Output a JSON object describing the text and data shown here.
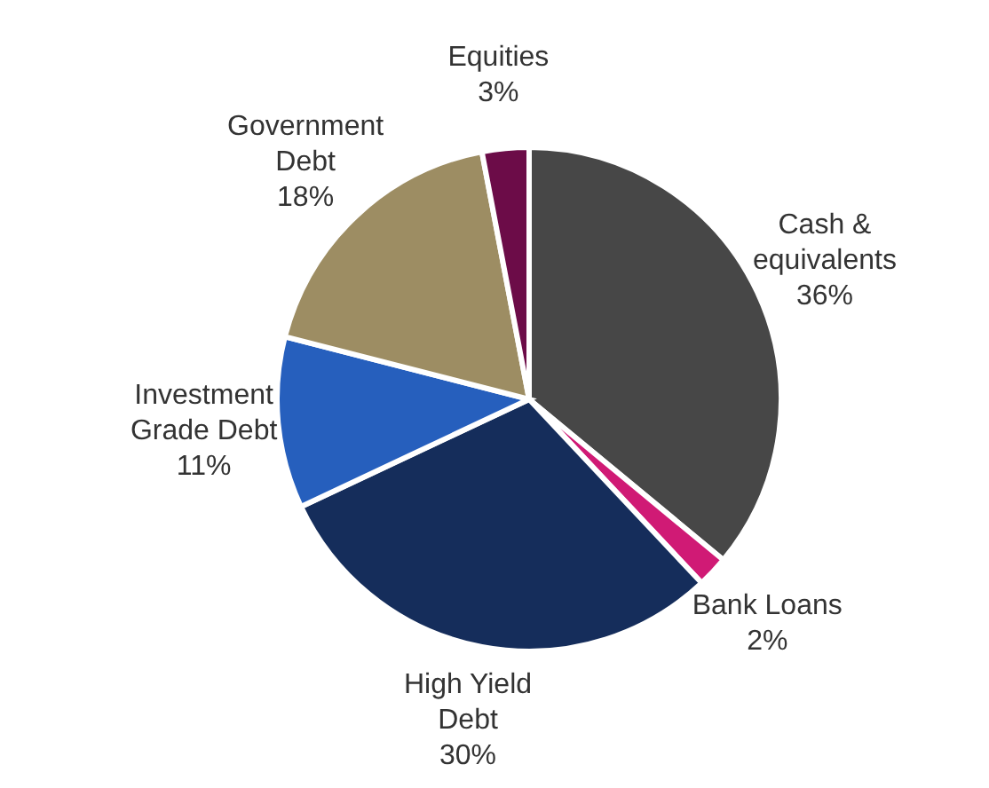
{
  "chart_data": {
    "type": "pie",
    "categories": [
      "Cash & equivalents",
      "Bank Loans",
      "High Yield Debt",
      "Investment Grade Debt",
      "Government Debt",
      "Equities"
    ],
    "values": [
      36,
      2,
      30,
      11,
      18,
      3
    ],
    "colors": [
      "#474747",
      "#d01a75",
      "#152d5b",
      "#265fbd",
      "#9d8d63",
      "#6c0c48"
    ],
    "value_labels": [
      "36%",
      "2%",
      "30%",
      "11%",
      "18%",
      "3%"
    ],
    "legend": false
  }
}
